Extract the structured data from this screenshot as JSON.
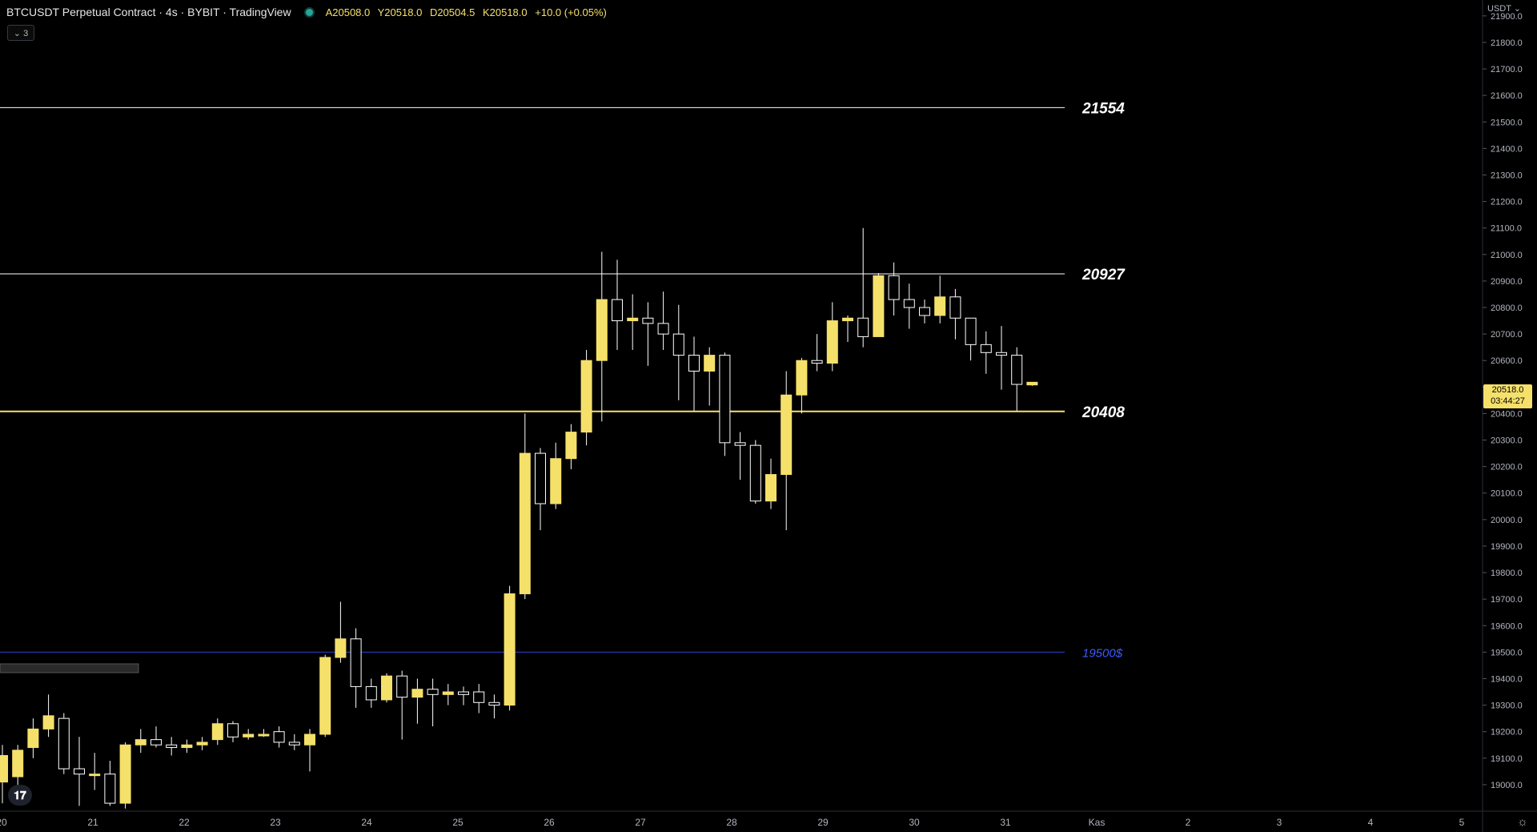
{
  "header": {
    "symbol": "BTCUSDT Perpetual Contract · 4s · BYBIT · TradingView",
    "ohlc": {
      "open": "A20508.0",
      "high": "Y20518.0",
      "low": "D20504.5",
      "close": "K20518.0",
      "change": "+10.0 (+0.05%)"
    }
  },
  "indicator_toggle": "⌄ 3",
  "price_axis": {
    "unit": "USDT ⌄"
  },
  "last_price_tag": {
    "price": "20518.0",
    "countdown": "03:44:27"
  },
  "colors": {
    "bull": "#f5e06a",
    "bear": "#000000",
    "wick": "#ffffff",
    "support": "#f5e06a",
    "level": "#ffffff",
    "target": "#2e43d6",
    "background": "#000000"
  },
  "chart_data": {
    "type": "candlestick",
    "ylim": [
      18900,
      21960
    ],
    "y_ticks": [
      19000,
      19100,
      19200,
      19300,
      19400,
      19500,
      19600,
      19700,
      19800,
      19900,
      20000,
      20100,
      20200,
      20300,
      20400,
      20500,
      20600,
      20700,
      20800,
      20900,
      21000,
      21100,
      21200,
      21300,
      21400,
      21500,
      21600,
      21700,
      21800,
      21900
    ],
    "x_ticks": [
      "20",
      "21",
      "22",
      "23",
      "24",
      "25",
      "26",
      "27",
      "28",
      "29",
      "30",
      "31",
      "Kas",
      "2",
      "3",
      "4",
      "5"
    ],
    "candles": [
      {
        "o": 19010,
        "h": 19150,
        "l": 18930,
        "c": 19110
      },
      {
        "o": 19030,
        "h": 19150,
        "l": 18940,
        "c": 19130
      },
      {
        "o": 19140,
        "h": 19250,
        "l": 19100,
        "c": 19210
      },
      {
        "o": 19210,
        "h": 19340,
        "l": 19180,
        "c": 19260
      },
      {
        "o": 19250,
        "h": 19270,
        "l": 19040,
        "c": 19060
      },
      {
        "o": 19060,
        "h": 19180,
        "l": 18920,
        "c": 19040
      },
      {
        "o": 19040,
        "h": 19120,
        "l": 18980,
        "c": 19040
      },
      {
        "o": 19040,
        "h": 19090,
        "l": 18920,
        "c": 18930
      },
      {
        "o": 18930,
        "h": 19160,
        "l": 18910,
        "c": 19150
      },
      {
        "o": 19150,
        "h": 19210,
        "l": 19120,
        "c": 19170
      },
      {
        "o": 19170,
        "h": 19220,
        "l": 19140,
        "c": 19150
      },
      {
        "o": 19150,
        "h": 19180,
        "l": 19110,
        "c": 19140
      },
      {
        "o": 19140,
        "h": 19170,
        "l": 19120,
        "c": 19150
      },
      {
        "o": 19150,
        "h": 19180,
        "l": 19130,
        "c": 19160
      },
      {
        "o": 19170,
        "h": 19250,
        "l": 19150,
        "c": 19230
      },
      {
        "o": 19230,
        "h": 19240,
        "l": 19160,
        "c": 19180
      },
      {
        "o": 19180,
        "h": 19210,
        "l": 19170,
        "c": 19190
      },
      {
        "o": 19190,
        "h": 19210,
        "l": 19180,
        "c": 19190
      },
      {
        "o": 19200,
        "h": 19220,
        "l": 19140,
        "c": 19160
      },
      {
        "o": 19160,
        "h": 19190,
        "l": 19130,
        "c": 19150
      },
      {
        "o": 19150,
        "h": 19210,
        "l": 19050,
        "c": 19190
      },
      {
        "o": 19190,
        "h": 19490,
        "l": 19180,
        "c": 19480
      },
      {
        "o": 19480,
        "h": 19690,
        "l": 19460,
        "c": 19550
      },
      {
        "o": 19550,
        "h": 19590,
        "l": 19290,
        "c": 19370
      },
      {
        "o": 19370,
        "h": 19400,
        "l": 19290,
        "c": 19320
      },
      {
        "o": 19320,
        "h": 19420,
        "l": 19310,
        "c": 19410
      },
      {
        "o": 19410,
        "h": 19430,
        "l": 19170,
        "c": 19330
      },
      {
        "o": 19330,
        "h": 19400,
        "l": 19230,
        "c": 19360
      },
      {
        "o": 19360,
        "h": 19400,
        "l": 19220,
        "c": 19340
      },
      {
        "o": 19340,
        "h": 19380,
        "l": 19300,
        "c": 19350
      },
      {
        "o": 19350,
        "h": 19370,
        "l": 19300,
        "c": 19340
      },
      {
        "o": 19350,
        "h": 19380,
        "l": 19270,
        "c": 19310
      },
      {
        "o": 19310,
        "h": 19340,
        "l": 19250,
        "c": 19300
      },
      {
        "o": 19300,
        "h": 19750,
        "l": 19280,
        "c": 19720
      },
      {
        "o": 19720,
        "h": 20400,
        "l": 19700,
        "c": 20250
      },
      {
        "o": 20250,
        "h": 20270,
        "l": 19960,
        "c": 20060
      },
      {
        "o": 20060,
        "h": 20290,
        "l": 20040,
        "c": 20230
      },
      {
        "o": 20230,
        "h": 20360,
        "l": 20190,
        "c": 20330
      },
      {
        "o": 20330,
        "h": 20640,
        "l": 20280,
        "c": 20600
      },
      {
        "o": 20600,
        "h": 21010,
        "l": 20370,
        "c": 20830
      },
      {
        "o": 20830,
        "h": 20980,
        "l": 20640,
        "c": 20750
      },
      {
        "o": 20750,
        "h": 20850,
        "l": 20640,
        "c": 20760
      },
      {
        "o": 20760,
        "h": 20820,
        "l": 20580,
        "c": 20740
      },
      {
        "o": 20740,
        "h": 20860,
        "l": 20640,
        "c": 20700
      },
      {
        "o": 20700,
        "h": 20810,
        "l": 20450,
        "c": 20620
      },
      {
        "o": 20620,
        "h": 20690,
        "l": 20410,
        "c": 20560
      },
      {
        "o": 20560,
        "h": 20650,
        "l": 20430,
        "c": 20620
      },
      {
        "o": 20620,
        "h": 20630,
        "l": 20240,
        "c": 20290
      },
      {
        "o": 20290,
        "h": 20330,
        "l": 20150,
        "c": 20280
      },
      {
        "o": 20280,
        "h": 20300,
        "l": 20060,
        "c": 20070
      },
      {
        "o": 20070,
        "h": 20230,
        "l": 20040,
        "c": 20170
      },
      {
        "o": 20170,
        "h": 20560,
        "l": 19960,
        "c": 20470
      },
      {
        "o": 20470,
        "h": 20610,
        "l": 20400,
        "c": 20600
      },
      {
        "o": 20600,
        "h": 20700,
        "l": 20560,
        "c": 20590
      },
      {
        "o": 20590,
        "h": 20820,
        "l": 20560,
        "c": 20750
      },
      {
        "o": 20750,
        "h": 20770,
        "l": 20670,
        "c": 20760
      },
      {
        "o": 20760,
        "h": 21100,
        "l": 20650,
        "c": 20690
      },
      {
        "o": 20690,
        "h": 20930,
        "l": 20690,
        "c": 20920
      },
      {
        "o": 20920,
        "h": 20970,
        "l": 20770,
        "c": 20830
      },
      {
        "o": 20830,
        "h": 20890,
        "l": 20720,
        "c": 20800
      },
      {
        "o": 20800,
        "h": 20830,
        "l": 20740,
        "c": 20770
      },
      {
        "o": 20770,
        "h": 20920,
        "l": 20740,
        "c": 20840
      },
      {
        "o": 20840,
        "h": 20870,
        "l": 20680,
        "c": 20760
      },
      {
        "o": 20760,
        "h": 20760,
        "l": 20600,
        "c": 20660
      },
      {
        "o": 20660,
        "h": 20710,
        "l": 20550,
        "c": 20630
      },
      {
        "o": 20630,
        "h": 20730,
        "l": 20490,
        "c": 20620
      },
      {
        "o": 20620,
        "h": 20650,
        "l": 20410,
        "c": 20510
      },
      {
        "o": 20508,
        "h": 20518,
        "l": 20504.5,
        "c": 20518
      }
    ],
    "horizontal_levels": [
      {
        "price": 21554,
        "label": "21554",
        "style": "level"
      },
      {
        "price": 20927,
        "label": "20927",
        "style": "level"
      },
      {
        "price": 20408,
        "label": "20408",
        "style": "support"
      },
      {
        "price": 19500,
        "label": "19500$",
        "style": "target"
      }
    ]
  }
}
